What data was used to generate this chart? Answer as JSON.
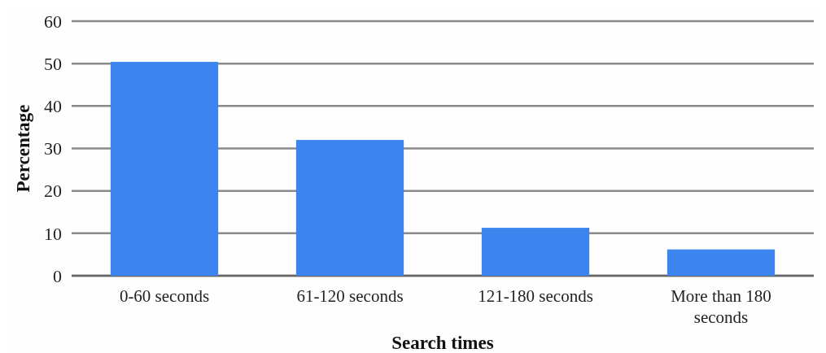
{
  "chart_data": {
    "type": "bar",
    "xlabel": "Search times",
    "ylabel": "Percentage",
    "categories": [
      "0-60 seconds",
      "61-120 seconds",
      "121-180 seconds",
      "More than 180 seconds"
    ],
    "values": [
      50.4,
      32,
      11.3,
      6.2
    ],
    "color": "#3d85ee",
    "ylim": [
      0,
      60
    ],
    "yticks": [
      0,
      10,
      20,
      30,
      40,
      50,
      60
    ],
    "grid": "y"
  }
}
